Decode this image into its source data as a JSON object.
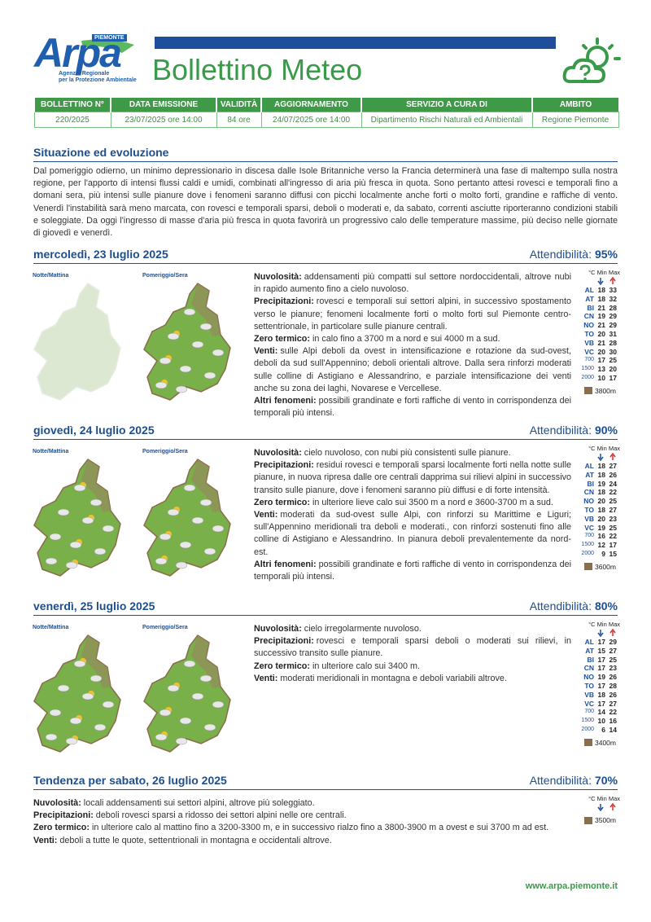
{
  "header": {
    "logo": {
      "region": "PIEMONTE",
      "name": "Arpa",
      "line1": "Agenzia Regionale",
      "line2": "per la Protezione Ambientale"
    },
    "title": "Bollettino Meteo"
  },
  "bulletin_info": {
    "headers": [
      "BOLLETTINO N°",
      "DATA EMISSIONE",
      "VALIDITÀ",
      "AGGIORNAMENTO",
      "SERVIZIO A CURA DI",
      "AMBITO"
    ],
    "values": [
      "220/2025",
      "23/07/2025 ore 14:00",
      "84 ore",
      "24/07/2025 ore 14:00",
      "Dipartimento Rischi Naturali ed Ambientali",
      "Regione Piemonte"
    ]
  },
  "situation": {
    "title": "Situazione ed evoluzione",
    "text": "Dal pomeriggio odierno, un minimo depressionario in discesa dalle Isole Britanniche verso la Francia determinerà una fase di maltempo sulla nostra regione, per l'apporto di intensi flussi caldi e umidi, combinati all'ingresso di aria più fresca in quota. Sono pertanto attesi rovesci e temporali fino a domani sera, più intensi sulle pianure dove i fenomeni saranno diffusi con picchi localmente anche forti o molto forti, grandine e raffiche di vento. Venerdì l'instabilità sarà meno marcata, con rovesci e temporali sparsi, deboli o moderati e, da sabato, correnti asciutte riporteranno condizioni stabili e soleggiate. Da oggi l'ingresso di masse d'aria più fresca in quota favorirà un progressivo calo delle temperature massime, più deciso nelle giornate di giovedì e venerdì."
  },
  "days": [
    {
      "date": "mercoledì, 23 luglio 2025",
      "reliability_label": "Attendibilità:",
      "reliability": "95%",
      "maps": [
        "Notte/Mattina",
        "Pomeriggio/Sera"
      ],
      "paragraphs": [
        {
          "label": "Nuvolosità:",
          "text": "addensamenti più compatti sul settore nordoccidentali, altrove nubi in rapido aumento fino a cielo nuvoloso."
        },
        {
          "label": "Precipitazioni:",
          "text": "rovesci e temporali sui settori alpini, in successivo spostamento verso le pianure; fenomeni localmente forti o molto forti sul Piemonte centro-settentrionale, in particolare sulle pianure centrali."
        },
        {
          "label": "Zero termico:",
          "text": "in calo fino a 3700 m a nord e sui 4000 m a sud."
        },
        {
          "label": "Venti:",
          "text": "sulle Alpi deboli da ovest in intensificazione e rotazione da sud-ovest, deboli da sud sull'Appennino; deboli orientali altrove. Dalla sera rinforzi moderati sulle colline di Astigiano e Alessandrino, e parziale intensificazione dei venti anche su zona dei laghi, Novarese e Vercellese."
        },
        {
          "label": "Altri fenomeni:",
          "text": "possibili grandinate e forti raffiche di vento in corrispondenza dei temporali più intensi."
        }
      ],
      "temperatures": {
        "header": "°C Min Max",
        "rows": [
          [
            "AL",
            18,
            33
          ],
          [
            "AT",
            18,
            32
          ],
          [
            "BI",
            21,
            28
          ],
          [
            "CN",
            19,
            29
          ],
          [
            "NO",
            21,
            29
          ],
          [
            "TO",
            20,
            31
          ],
          [
            "VB",
            21,
            28
          ],
          [
            "VC",
            20,
            30
          ],
          [
            700,
            17,
            25
          ],
          [
            1500,
            13,
            20
          ],
          [
            2000,
            10,
            17
          ]
        ],
        "freezing_level": "3800m"
      }
    },
    {
      "date": "giovedì, 24 luglio 2025",
      "reliability_label": "Attendibilità:",
      "reliability": "90%",
      "maps": [
        "Notte/Mattina",
        "Pomeriggio/Sera"
      ],
      "paragraphs": [
        {
          "label": "Nuvolosità:",
          "text": "cielo nuvoloso, con nubi più consistenti sulle pianure."
        },
        {
          "label": "Precipitazioni:",
          "text": "residui rovesci e temporali sparsi localmente forti nella notte sulle pianure, in nuova ripresa dalle ore centrali dapprima sui rilievi alpini in successivo transito sulle pianure, dove i fenomeni saranno più diffusi e di forte intensità."
        },
        {
          "label": "Zero termico:",
          "text": "in ulteriore lieve calo sui 3500 m a nord e 3600-3700 m a sud."
        },
        {
          "label": "Venti:",
          "text": "moderati da sud-ovest sulle Alpi, con rinforzi su Marittime e Liguri; sull'Appennino meridionali tra deboli e moderati., con rinforzi sostenuti fino alle colline di Astigiano e Alessandrino. In pianura deboli prevalentemente da nord-est."
        },
        {
          "label": "Altri fenomeni:",
          "text": "possibili grandinate e forti raffiche di vento in corrispondenza dei temporali più intensi."
        }
      ],
      "temperatures": {
        "header": "°C Min Max",
        "rows": [
          [
            "AL",
            18,
            27
          ],
          [
            "AT",
            18,
            26
          ],
          [
            "BI",
            19,
            24
          ],
          [
            "CN",
            18,
            22
          ],
          [
            "NO",
            20,
            25
          ],
          [
            "TO",
            18,
            27
          ],
          [
            "VB",
            20,
            23
          ],
          [
            "VC",
            19,
            25
          ],
          [
            700,
            16,
            22
          ],
          [
            1500,
            12,
            17
          ],
          [
            2000,
            9,
            15
          ]
        ],
        "freezing_level": "3600m"
      }
    },
    {
      "date": "venerdì, 25 luglio 2025",
      "reliability_label": "Attendibilità:",
      "reliability": "80%",
      "maps": [
        "Notte/Mattina",
        "Pomeriggio/Sera"
      ],
      "paragraphs": [
        {
          "label": "Nuvolosità:",
          "text": "cielo irregolarmente nuvoloso."
        },
        {
          "label": "Precipitazioni:",
          "text": "rovesci e temporali sparsi deboli o moderati sui rilievi, in successivo transito sulle pianure."
        },
        {
          "label": "Zero termico:",
          "text": "in ulteriore calo sui 3400 m."
        },
        {
          "label": "Venti:",
          "text": "moderati meridionali in montagna e deboli variabili altrove."
        }
      ],
      "temperatures": {
        "header": "°C Min Max",
        "rows": [
          [
            "AL",
            17,
            29
          ],
          [
            "AT",
            15,
            27
          ],
          [
            "BI",
            17,
            25
          ],
          [
            "CN",
            17,
            23
          ],
          [
            "NO",
            19,
            26
          ],
          [
            "TO",
            17,
            28
          ],
          [
            "VB",
            18,
            26
          ],
          [
            "VC",
            17,
            27
          ],
          [
            700,
            14,
            22
          ],
          [
            1500,
            10,
            16
          ],
          [
            2000,
            6,
            14
          ]
        ],
        "freezing_level": "3400m"
      }
    }
  ],
  "tendency": {
    "date": "Tendenza per sabato, 26 luglio 2025",
    "reliability_label": "Attendibilità:",
    "reliability": "70%",
    "paragraphs": [
      {
        "label": "Nuvolosità:",
        "text": "locali addensamenti sui settori alpini, altrove più soleggiato."
      },
      {
        "label": "Precipitazioni:",
        "text": "deboli rovesci sparsi a ridosso dei settori alpini nelle ore centrali."
      },
      {
        "label": "Zero termico:",
        "text": "in ulteriore calo al mattino fino a 3200-3300 m, e in successivo rialzo fino a 3800-3900 m a ovest e sui 3700 m ad est."
      },
      {
        "label": "Venti:",
        "text": "deboli a tutte le quote, settentrionali in montagna e occidentali altrove."
      }
    ],
    "temperatures": {
      "header": "°C Min Max",
      "rows": [],
      "freezing_level": "3500m"
    }
  },
  "footer": {
    "url": "www.arpa.piemonte.it"
  }
}
